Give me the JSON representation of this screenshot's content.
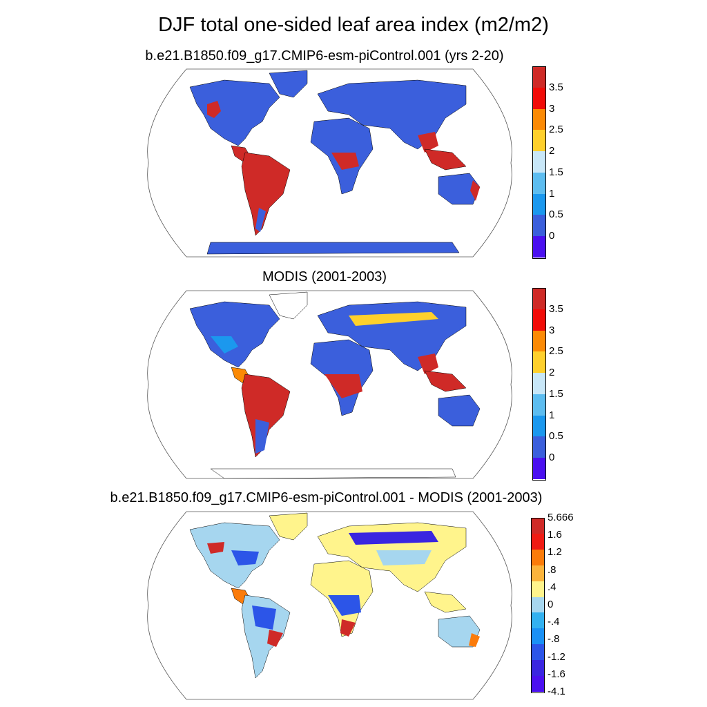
{
  "title": "DJF total one-sided leaf area index (m2/m2)",
  "panels": [
    {
      "title": "b.e21.B1850.f09_g17.CMIP6-esm-piControl.001 (yrs 2-20)",
      "colorbar": {
        "colors": [
          "#cf2a27",
          "#f10c08",
          "#fb8a05",
          "#fed02c",
          "#c8e7f8",
          "#5dbdf0",
          "#1b98ee",
          "#3b5fdc",
          "#4a10f0"
        ],
        "labels": [
          "3.5",
          "3",
          "2.5",
          "2",
          "1.5",
          "1",
          "0.5",
          "0"
        ]
      }
    },
    {
      "title": "MODIS (2001-2003)",
      "colorbar": {
        "colors": [
          "#cf2a27",
          "#f10c08",
          "#fb8a05",
          "#fed02c",
          "#c8e7f8",
          "#5dbdf0",
          "#1b98ee",
          "#3b5fdc",
          "#4a10f0"
        ],
        "labels": [
          "3.5",
          "3",
          "2.5",
          "2",
          "1.5",
          "1",
          "0.5",
          "0"
        ]
      }
    },
    {
      "title": "b.e21.B1850.f09_g17.CMIP6-esm-piControl.001 - MODIS (2001-2003)",
      "colorbar": {
        "colors": [
          "#cf2a27",
          "#ef1b14",
          "#fb7b0a",
          "#fcb43c",
          "#fff48c",
          "#a6d6ef",
          "#33b1f0",
          "#1a90f5",
          "#2c55e8",
          "#3a26e0",
          "#4a10f0"
        ],
        "labels": [
          "5.666",
          "1.6",
          "1.2",
          ".8",
          ".4",
          "0",
          "-.4",
          "-.8",
          "-1.2",
          "-1.6",
          "-4.1"
        ]
      }
    }
  ],
  "colors": {
    "land_low": "#3b5fdc",
    "land_high": "#cf2a27",
    "land_mid": "#fb8a05",
    "light_blue": "#a6d6ef",
    "pale_yellow": "#fff48c"
  }
}
